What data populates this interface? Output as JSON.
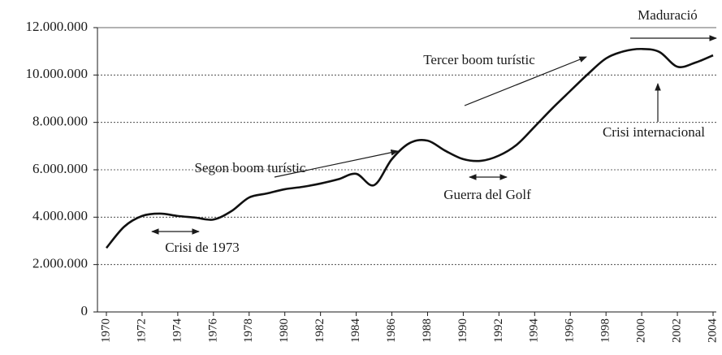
{
  "chart_data": {
    "type": "line",
    "x": [
      1970,
      1971,
      1972,
      1973,
      1974,
      1975,
      1976,
      1977,
      1978,
      1979,
      1980,
      1981,
      1982,
      1983,
      1984,
      1985,
      1986,
      1987,
      1988,
      1989,
      1990,
      1991,
      1992,
      1993,
      1994,
      1995,
      1996,
      1997,
      1998,
      1999,
      2000,
      2001,
      2002,
      2003,
      2004
    ],
    "series": [
      {
        "color": "#111111",
        "values": [
          2700000,
          3600000,
          4050000,
          4150000,
          4050000,
          3980000,
          3900000,
          4250000,
          4830000,
          5000000,
          5180000,
          5280000,
          5420000,
          5600000,
          5830000,
          5350000,
          6450000,
          7130000,
          7230000,
          6800000,
          6450000,
          6380000,
          6600000,
          7060000,
          7820000,
          8600000,
          9330000,
          10050000,
          10700000,
          11000000,
          11100000,
          10970000,
          10350000,
          10520000,
          10830000
        ]
      }
    ],
    "xlim": [
      1970,
      2004
    ],
    "xticks": [
      1970,
      1972,
      1974,
      1976,
      1978,
      1980,
      1982,
      1984,
      1986,
      1988,
      1990,
      1992,
      1994,
      1996,
      1998,
      2000,
      2002,
      2004
    ],
    "ylim": [
      0,
      12000000
    ],
    "yticks": [
      0,
      {
        "value": 2000000,
        "label": "2.000.000"
      },
      {
        "value": 4000000,
        "label": "4.000.000"
      },
      {
        "value": 6000000,
        "label": "6.000.000"
      },
      {
        "value": 8000000,
        "label": "8.000.000"
      },
      {
        "value": 10000000,
        "label": "10.000.000"
      },
      {
        "value": 12000000,
        "label": "12.000.000"
      }
    ],
    "grid": true,
    "annotations": [
      "Maduració",
      "Tercer boom  turístic",
      "Crisi internacional",
      "Segon boom  turístic",
      "Guerra del Golf",
      "Crisi de 1973"
    ]
  }
}
